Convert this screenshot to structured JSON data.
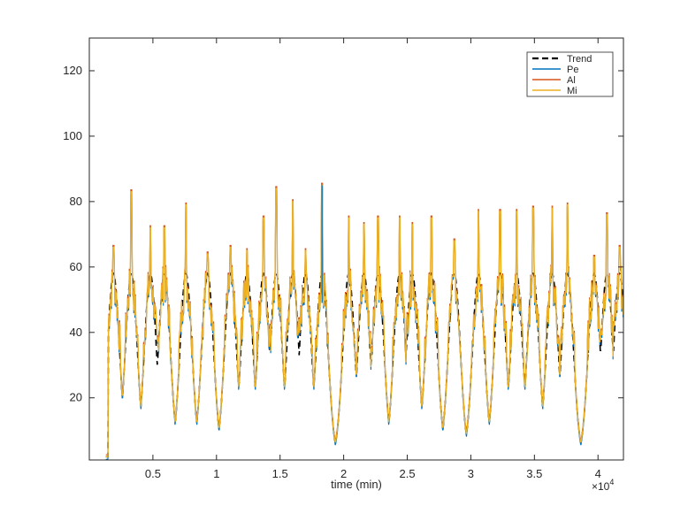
{
  "chart_data": {
    "type": "line",
    "title": "",
    "xlabel": "time (min)",
    "ylabel": "",
    "x_exponent_label": "×10",
    "x_exponent_power": "4",
    "xlim": [
      0,
      42000
    ],
    "ylim": [
      1,
      130
    ],
    "xticks": [
      5000,
      10000,
      15000,
      20000,
      25000,
      30000,
      35000,
      40000
    ],
    "xtick_labels": [
      "0.5",
      "1",
      "1.5",
      "2",
      "2.5",
      "3",
      "3.5",
      "4"
    ],
    "yticks": [
      20,
      40,
      60,
      80,
      100,
      120
    ],
    "ytick_labels": [
      "20",
      "40",
      "60",
      "80",
      "100",
      "120"
    ],
    "legend_position": "top-right",
    "grid": false,
    "cycle_peaks": [
      {
        "x": 1900,
        "spike": 66
      },
      {
        "x": 3300,
        "spike": 83
      },
      {
        "x": 4800,
        "spike": 72
      },
      {
        "x": 5900,
        "spike": 72
      },
      {
        "x": 7600,
        "spike": 79
      },
      {
        "x": 9300,
        "spike": 64
      },
      {
        "x": 11100,
        "spike": 66
      },
      {
        "x": 12400,
        "spike": 65
      },
      {
        "x": 13700,
        "spike": 75
      },
      {
        "x": 14700,
        "spike": 84
      },
      {
        "x": 16000,
        "spike": 80
      },
      {
        "x": 17000,
        "spike": 65
      },
      {
        "x": 18300,
        "spike": 85
      },
      {
        "x": 20400,
        "spike": 75
      },
      {
        "x": 21600,
        "spike": 73
      },
      {
        "x": 22700,
        "spike": 75
      },
      {
        "x": 24400,
        "spike": 75
      },
      {
        "x": 25400,
        "spike": 73
      },
      {
        "x": 26900,
        "spike": 75
      },
      {
        "x": 28700,
        "spike": 68
      },
      {
        "x": 30600,
        "spike": 77
      },
      {
        "x": 32300,
        "spike": 77
      },
      {
        "x": 33600,
        "spike": 77
      },
      {
        "x": 34900,
        "spike": 78
      },
      {
        "x": 36400,
        "spike": 78
      },
      {
        "x": 37600,
        "spike": 79
      },
      {
        "x": 39700,
        "spike": 63
      },
      {
        "x": 40700,
        "spike": 76
      },
      {
        "x": 41700,
        "spike": 66
      }
    ],
    "series": [
      {
        "name": "Trend",
        "color": "#000000",
        "style": "dashed"
      },
      {
        "name": "Pe",
        "color": "#0072BD",
        "style": "solid"
      },
      {
        "name": "Al",
        "color": "#D95319",
        "style": "solid"
      },
      {
        "name": "Mi",
        "color": "#EDB120",
        "style": "solid"
      }
    ]
  }
}
